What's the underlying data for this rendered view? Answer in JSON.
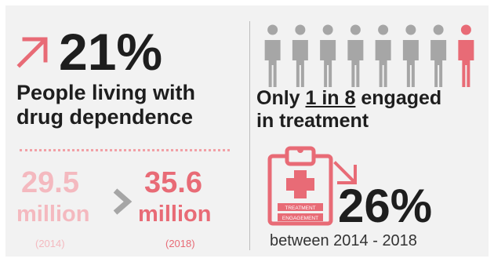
{
  "left": {
    "change_pct": "21%",
    "title_line1": "People living with",
    "title_line2": "drug dependence",
    "from_value": "29.5",
    "from_unit": "million",
    "from_year": "(2014)",
    "to_value": "35.6",
    "to_unit": "million",
    "to_year": "(2018)"
  },
  "right": {
    "title_prefix": "Only ",
    "title_ratio": "1 in 8",
    "title_suffix": " engaged",
    "title_line2": "in treatment",
    "people_total": 8,
    "people_highlighted": 1,
    "clipboard_label1": "TREATMENT",
    "clipboard_label2": "ENGAGEMENT",
    "change_pct": "26%",
    "period": "between 2014 - 2018"
  },
  "colors": {
    "accent": "#e86b76",
    "accent_light": "#f4b9bf",
    "figure_gray": "#a6a6a6",
    "background": "#f2f2f2",
    "text": "#1e1e1e"
  },
  "icons": [
    "trend-up-arrow-icon",
    "chevron-right-icon",
    "person-icon",
    "clipboard-medical-icon",
    "trend-down-arrow-icon"
  ]
}
